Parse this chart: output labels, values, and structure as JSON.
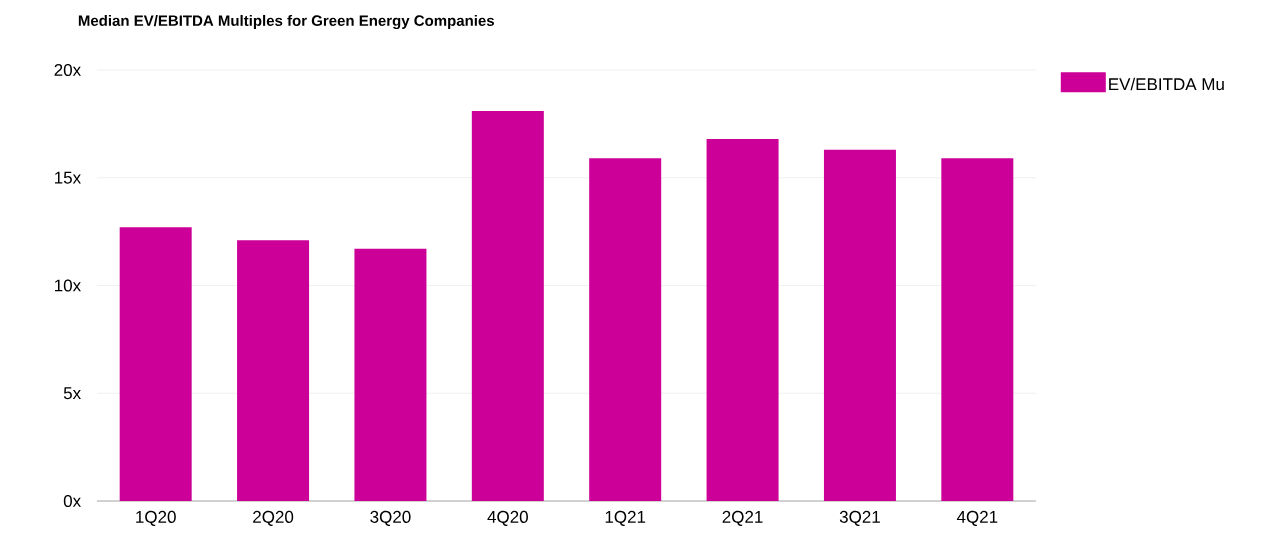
{
  "chart_data": {
    "type": "bar",
    "title": "Median EV/EBITDA Multiples for Green Energy Companies",
    "categories": [
      "1Q20",
      "2Q20",
      "3Q20",
      "4Q20",
      "1Q21",
      "2Q21",
      "3Q21",
      "4Q21"
    ],
    "series": [
      {
        "name": "EV/EBITDA Mu",
        "color": "#cc0099",
        "values": [
          12.7,
          12.1,
          11.7,
          18.1,
          15.9,
          16.8,
          16.3,
          15.9
        ]
      }
    ],
    "ylim": [
      0,
      20
    ],
    "yticks": [
      {
        "value": 0,
        "label": "0x"
      },
      {
        "value": 5,
        "label": "5x"
      },
      {
        "value": 10,
        "label": "10x"
      },
      {
        "value": 15,
        "label": "15x"
      },
      {
        "value": 20,
        "label": "20x"
      }
    ],
    "grid": "y",
    "legend": "right"
  }
}
